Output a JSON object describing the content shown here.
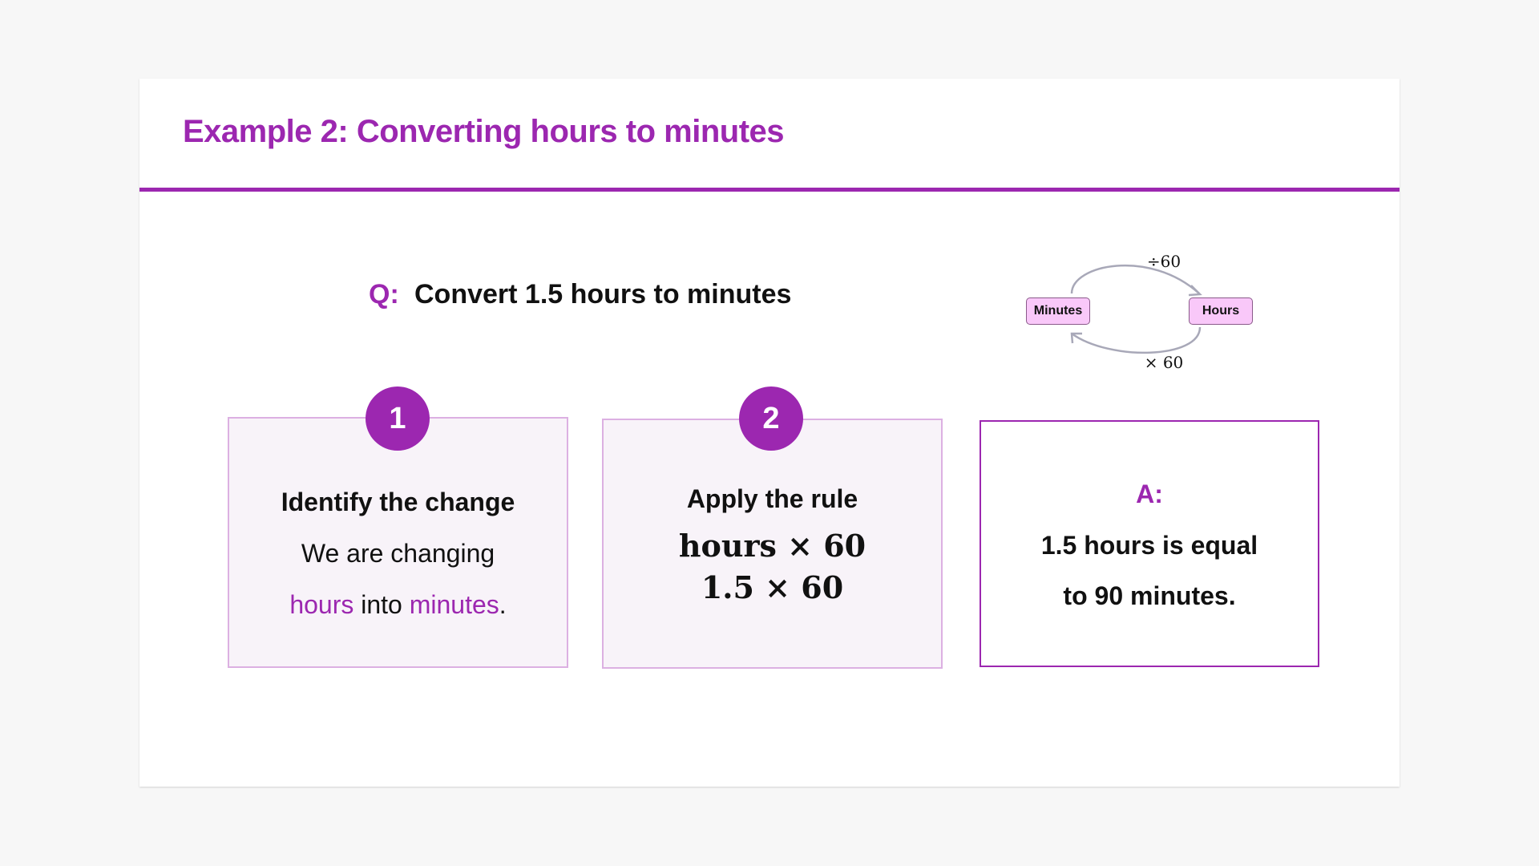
{
  "title": "Example 2: Converting hours to minutes",
  "question": {
    "label": "Q:",
    "text": "Convert 1.5 hours to minutes"
  },
  "diagram": {
    "left_box": "Minutes",
    "right_box": "Hours",
    "top_op": "÷60",
    "bottom_op": "× 60"
  },
  "steps": [
    {
      "number": "1",
      "heading": "Identify the change",
      "line1": "We are changing",
      "word1": "hours",
      "mid": " into ",
      "word2": "minutes",
      "end": "."
    },
    {
      "number": "2",
      "heading": "Apply the rule",
      "math1": "hours × 60",
      "math2": "1.5 × 60"
    }
  ],
  "answer": {
    "label": "A:",
    "line1": "1.5 hours is equal",
    "line2": "to 90 minutes."
  },
  "colors": {
    "accent": "#9c27b0",
    "card_bg": "#f8f3f9",
    "box_fill": "#f9c8f9"
  }
}
